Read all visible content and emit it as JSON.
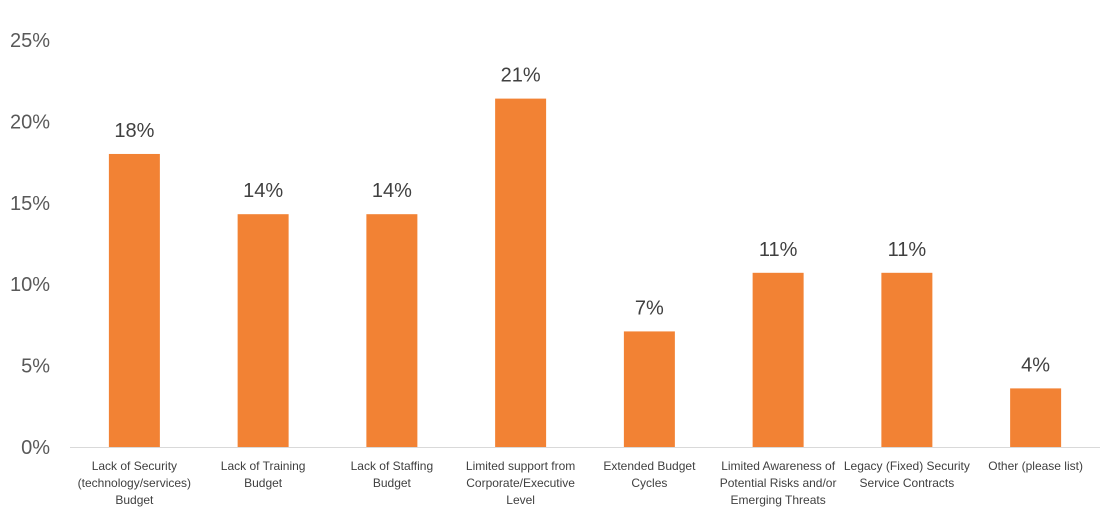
{
  "chart_data": {
    "type": "bar",
    "title": "",
    "xlabel": "",
    "ylabel": "",
    "ylim": [
      0,
      25
    ],
    "yticks": [
      "0%",
      "5%",
      "10%",
      "15%",
      "20%",
      "25%"
    ],
    "grid": false,
    "legend": "none",
    "bar_color": "#F28234",
    "categories": [
      [
        "Lack of Security",
        "(technology/services)",
        "Budget"
      ],
      [
        "Lack of Training",
        "Budget"
      ],
      [
        "Lack of Staffing",
        "Budget"
      ],
      [
        "Limited support from",
        "Corporate/Executive",
        "Level"
      ],
      [
        "Extended Budget",
        "Cycles"
      ],
      [
        "Limited Awareness of",
        "Potential Risks and/or",
        "Emerging Threats"
      ],
      [
        "Legacy (Fixed) Security",
        "Service Contracts"
      ],
      [
        "Other (please list)"
      ]
    ],
    "values": [
      18,
      14.3,
      14.3,
      21.4,
      7.1,
      10.7,
      10.7,
      3.6
    ],
    "data_labels": [
      "18%",
      "14%",
      "14%",
      "21%",
      "7%",
      "11%",
      "11%",
      "4%"
    ]
  }
}
